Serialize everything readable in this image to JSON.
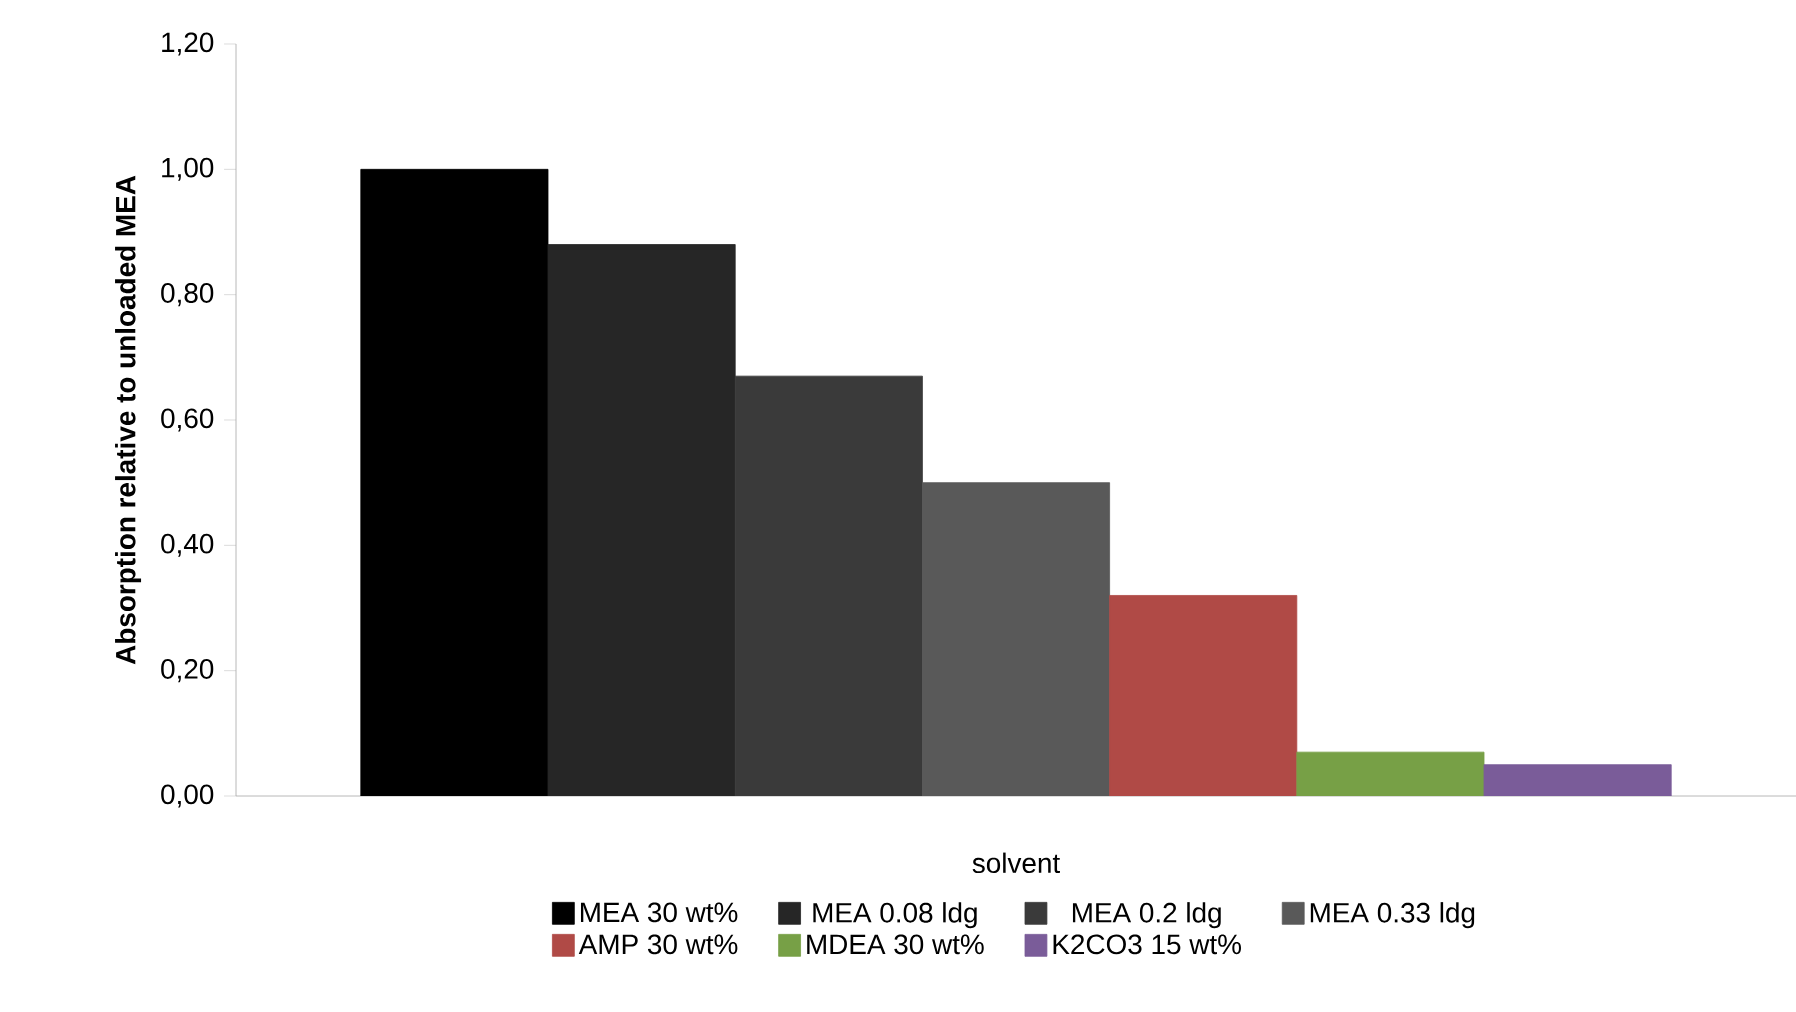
{
  "chart_data": {
    "type": "bar",
    "categories": [
      null
    ],
    "xlabel": "solvent",
    "ylabel": "Absorption relative to unloaded MEA",
    "ylim": [
      0,
      1.2
    ],
    "yticks": [
      {
        "value": 0,
        "label": "0,00"
      },
      {
        "value": 0.2,
        "label": "0,20"
      },
      {
        "value": 0.4,
        "label": "0,40"
      },
      {
        "value": 0.6,
        "label": "0,60"
      },
      {
        "value": 0.8,
        "label": "0,80"
      },
      {
        "value": 1.0,
        "label": "1,00"
      },
      {
        "value": 1.2,
        "label": "1,20"
      }
    ],
    "legend": "bottom",
    "grid": false,
    "series": [
      {
        "name": "MEA 30 wt%",
        "color": "#000000",
        "values": [
          1.0
        ]
      },
      {
        "name": "MEA 0.08 ldg",
        "color": "#262626",
        "values": [
          0.88
        ]
      },
      {
        "name": "MEA 0.2 ldg",
        "color": "#3a3a3a",
        "values": [
          0.67
        ]
      },
      {
        "name": "MEA 0.33 ldg",
        "color": "#595959",
        "values": [
          0.5
        ]
      },
      {
        "name": "AMP 30 wt%",
        "color": "#b04a46",
        "values": [
          0.32
        ]
      },
      {
        "name": "MDEA 30 wt%",
        "color": "#77a046",
        "values": [
          0.07
        ]
      },
      {
        "name": "K2CO3 15 wt%",
        "color": "#7a5c99",
        "values": [
          0.05
        ]
      }
    ]
  }
}
